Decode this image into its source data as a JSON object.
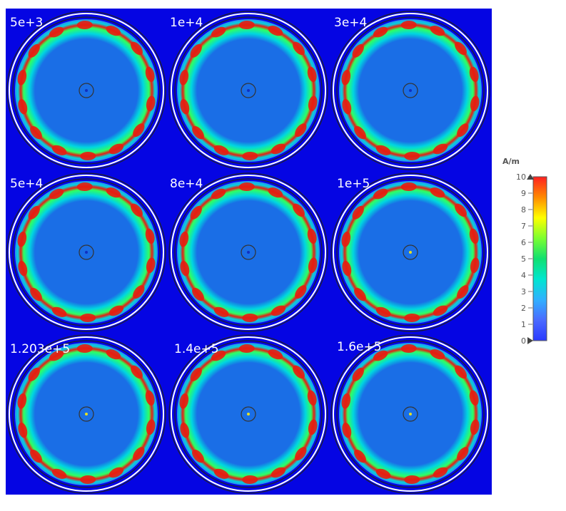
{
  "chart_data": {
    "type": "heatmap",
    "title": "",
    "panels": [
      {
        "label": "5e+3"
      },
      {
        "label": "1e+4"
      },
      {
        "label": "3e+4"
      },
      {
        "label": "5e+4"
      },
      {
        "label": "8e+4"
      },
      {
        "label": "1e+5"
      },
      {
        "label": "1.203e+5"
      },
      {
        "label": "1.4e+5"
      },
      {
        "label": "1.6e+5"
      }
    ],
    "colorbar": {
      "unit": "A/m",
      "range": [
        0,
        10
      ],
      "ticks": [
        "10",
        "9",
        "8",
        "7",
        "6",
        "5",
        "4",
        "3",
        "2",
        "1",
        "0"
      ],
      "colormap": [
        "#ff2020",
        "#ff8a00",
        "#ffff00",
        "#7cff30",
        "#10e070",
        "#00e6d0",
        "#30b0ff",
        "#4a6aff",
        "#2a3aff"
      ]
    },
    "colors": {
      "background": "#0505e3",
      "field_low": "#1a6ee6",
      "field_mid": "#00d6e0",
      "field_high": "#e81c10"
    }
  }
}
